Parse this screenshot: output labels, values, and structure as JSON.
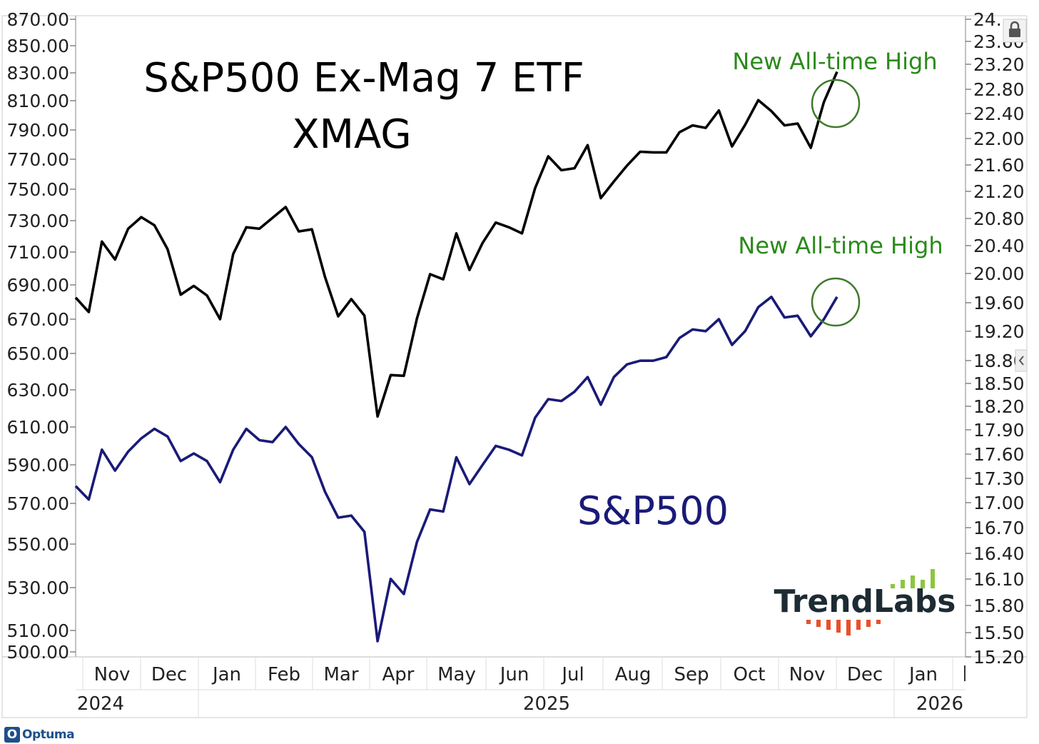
{
  "chart_data": {
    "type": "line",
    "title": "S&P500 Ex-Mag 7 ETF",
    "subtitle": "XMAG",
    "x": [
      "2024-10-18",
      "2024-10-25",
      "2024-11-01",
      "2024-11-08",
      "2024-11-15",
      "2024-11-22",
      "2024-11-29",
      "2024-12-06",
      "2024-12-13",
      "2024-12-20",
      "2024-12-27",
      "2025-01-03",
      "2025-01-10",
      "2025-01-17",
      "2025-01-24",
      "2025-01-31",
      "2025-02-07",
      "2025-02-14",
      "2025-02-21",
      "2025-02-28",
      "2025-03-07",
      "2025-03-14",
      "2025-03-21",
      "2025-03-28",
      "2025-04-04",
      "2025-04-11",
      "2025-04-18",
      "2025-04-25",
      "2025-05-02",
      "2025-05-09",
      "2025-05-16",
      "2025-05-23",
      "2025-05-30",
      "2025-06-06",
      "2025-06-13",
      "2025-06-20",
      "2025-06-27",
      "2025-07-03",
      "2025-07-11",
      "2025-07-18",
      "2025-07-25",
      "2025-08-01",
      "2025-08-08",
      "2025-08-15",
      "2025-08-22",
      "2025-08-29",
      "2025-09-05",
      "2025-09-12",
      "2025-09-19",
      "2025-09-26",
      "2025-10-03",
      "2025-10-10",
      "2025-10-17",
      "2025-10-24",
      "2025-10-31",
      "2025-11-07",
      "2025-11-14",
      "2025-11-21",
      "2025-11-28"
    ],
    "series": [
      {
        "name": "XMAG",
        "axis": "right",
        "color": "#000000",
        "values": [
          19.67,
          19.47,
          20.46,
          20.2,
          20.65,
          20.82,
          20.7,
          20.35,
          19.71,
          19.83,
          19.7,
          19.37,
          20.28,
          20.67,
          20.65,
          20.81,
          20.97,
          20.61,
          20.64,
          19.95,
          19.41,
          19.65,
          19.42,
          18.07,
          18.61,
          18.6,
          19.38,
          19.99,
          19.92,
          20.58,
          20.05,
          20.44,
          20.74,
          20.67,
          20.58,
          21.25,
          21.73,
          21.52,
          21.55,
          21.9,
          21.1,
          21.35,
          21.59,
          21.8,
          21.79,
          21.79,
          22.1,
          22.21,
          22.17,
          22.45,
          21.88,
          22.22,
          22.62,
          22.44,
          22.21,
          22.24,
          21.86,
          22.59,
          23.08
        ],
        "end_annotation": "New All-time High"
      },
      {
        "name": "S&P500",
        "axis": "left",
        "color": "#1a1a78",
        "values": [
          579,
          572,
          598,
          587,
          597,
          604,
          609,
          605,
          592,
          596,
          592,
          581,
          598,
          609,
          603,
          602,
          610,
          601,
          594,
          576,
          563,
          564,
          556,
          505,
          534,
          527,
          551,
          567,
          566,
          594,
          580,
          590,
          600,
          598,
          595,
          615,
          625,
          624,
          629,
          637,
          622,
          637,
          644,
          646,
          646,
          648,
          659,
          664,
          663,
          670,
          655,
          663,
          677,
          683,
          671,
          672,
          660,
          670,
          683
        ],
        "label": "S&P500",
        "end_annotation": "New All-time High"
      }
    ],
    "left_axis": {
      "ylim": [
        500,
        870
      ],
      "tick_labels": [
        "870.00",
        "850.00",
        "830.00",
        "810.00",
        "790.00",
        "770.00",
        "750.00",
        "730.00",
        "710.00",
        "690.00",
        "670.00",
        "650.00",
        "630.00",
        "610.00",
        "590.00",
        "570.00",
        "550.00",
        "530.00",
        "510.00",
        "500.00"
      ]
    },
    "right_axis": {
      "tick_labels": [
        "24.",
        "23.60",
        "23.20",
        "22.80",
        "22.40",
        "22.00",
        "21.60",
        "21.20",
        "20.80",
        "20.40",
        "20.00",
        "19.60",
        "19.20",
        "18.80",
        "18.50",
        "18.20",
        "17.90",
        "17.60",
        "17.30",
        "17.00",
        "16.70",
        "16.40",
        "16.10",
        "15.80",
        "15.50",
        "15.20"
      ]
    },
    "x_axis": {
      "months": [
        "Nov",
        "Dec",
        "Jan",
        "Feb",
        "Mar",
        "Apr",
        "May",
        "Jun",
        "Jul",
        "Aug",
        "Sep",
        "Oct",
        "Nov",
        "Dec",
        "Jan"
      ],
      "years": [
        "2024",
        "2025",
        "2026"
      ]
    },
    "annotations": {
      "top_high": "New All-time High",
      "bottom_high": "New All-time High",
      "spx_label": "S&P500"
    },
    "legend": "none",
    "grid": false
  },
  "branding": {
    "logo_text": "TrendLabs",
    "footer_text": "Optuma",
    "footer_mark": "O"
  },
  "colors": {
    "xmag_line": "#000000",
    "spx_line": "#1a1a78",
    "annotation_green": "#2a8a1a",
    "circle_green": "#3f7a2a",
    "logo_green": "#8cc63f",
    "logo_red": "#e8502a"
  }
}
